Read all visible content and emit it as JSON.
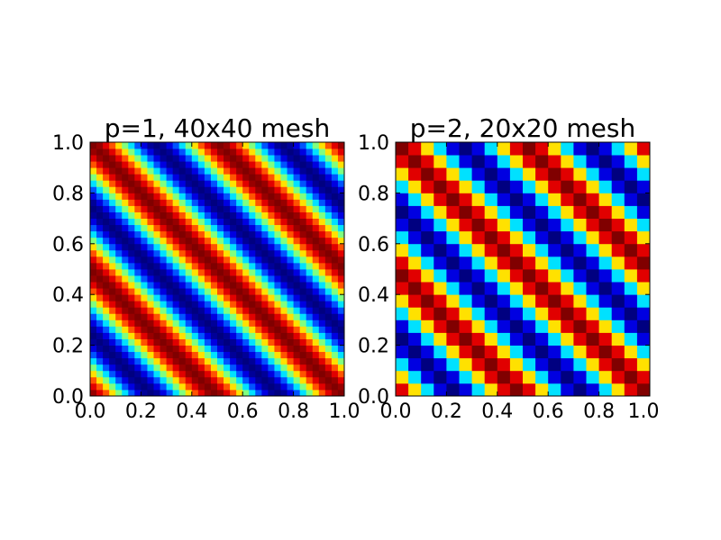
{
  "figure": {
    "background": "#ffffff"
  },
  "chart_data": [
    {
      "type": "heatmap",
      "title": "p=1, 40x40 mesh",
      "xlabel": "",
      "ylabel": "",
      "xlim": [
        0.0,
        1.0
      ],
      "ylim": [
        0.0,
        1.0
      ],
      "x_ticks": [
        "0.0",
        "0.2",
        "0.4",
        "0.6",
        "0.8",
        "1.0"
      ],
      "y_ticks": [
        "0.0",
        "0.2",
        "0.4",
        "0.6",
        "0.8",
        "1.0"
      ],
      "x_tick_values": [
        0.0,
        0.2,
        0.4,
        0.6,
        0.8,
        1.0
      ],
      "y_tick_values": [
        0.0,
        0.2,
        0.4,
        0.6,
        0.8,
        1.0
      ],
      "mesh": [
        40,
        40
      ],
      "colormap": "jet",
      "field": "cos(2*pi*2*(x+y))",
      "grid": false
    },
    {
      "type": "heatmap",
      "title": "p=2, 20x20 mesh",
      "xlabel": "",
      "ylabel": "",
      "xlim": [
        0.0,
        1.0
      ],
      "ylim": [
        0.0,
        1.0
      ],
      "x_ticks": [
        "0.0",
        "0.2",
        "0.4",
        "0.6",
        "0.8",
        "1.0"
      ],
      "y_ticks": [
        "0.0",
        "0.2",
        "0.4",
        "0.6",
        "0.8",
        "1.0"
      ],
      "x_tick_values": [
        0.0,
        0.2,
        0.4,
        0.6,
        0.8,
        1.0
      ],
      "y_tick_values": [
        0.0,
        0.2,
        0.4,
        0.6,
        0.8,
        1.0
      ],
      "mesh": [
        20,
        20
      ],
      "colormap": "jet",
      "field": "cos(2*pi*2*(x+y))",
      "grid": false
    }
  ]
}
